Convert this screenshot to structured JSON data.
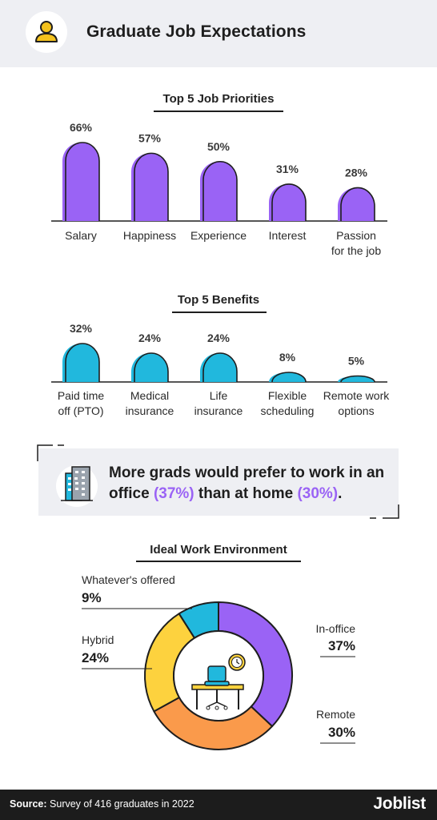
{
  "header": {
    "title": "Graduate Job Expectations",
    "icon": "user-icon",
    "icon_color": "#f4c21d"
  },
  "callout": {
    "text_before": "More grads would prefer to work in an office ",
    "highlight_1": "(37%)",
    "text_middle": " than at home ",
    "highlight_2": "(30%)",
    "text_after": ".",
    "icon": "office-building-icon",
    "highlight_color": "#9a63f5"
  },
  "footer": {
    "source_label": "Source:",
    "source_text": "Survey of 416 graduates in 2022",
    "brand": "Joblist"
  },
  "chart_data": [
    {
      "type": "bar",
      "title": "Top 5 Job Priorities",
      "categories": [
        "Salary",
        "Happiness",
        "Experience",
        "Interest",
        "Passion for the job"
      ],
      "values": [
        66,
        57,
        50,
        31,
        28
      ],
      "value_labels": [
        "66%",
        "57%",
        "50%",
        "31%",
        "28%"
      ],
      "unit": "%",
      "color": "#9a63f5",
      "ylim": [
        0,
        66
      ]
    },
    {
      "type": "bar",
      "title": "Top 5 Benefits",
      "categories": [
        "Paid time off (PTO)",
        "Medical insurance",
        "Life insurance",
        "Flexible scheduling",
        "Remote work options"
      ],
      "values": [
        32,
        24,
        24,
        8,
        5
      ],
      "value_labels": [
        "32%",
        "24%",
        "24%",
        "8%",
        "5%"
      ],
      "unit": "%",
      "color": "#21b8dd",
      "ylim": [
        0,
        32
      ]
    },
    {
      "type": "pie",
      "title": "Ideal Work Environment",
      "categories": [
        "In-office",
        "Remote",
        "Hybrid",
        "Whatever's offered"
      ],
      "values": [
        37,
        30,
        24,
        9
      ],
      "value_labels": [
        "37%",
        "30%",
        "24%",
        "9%"
      ],
      "colors": [
        "#9a63f5",
        "#fa9a4b",
        "#fdd23e",
        "#21b8dd"
      ],
      "style": "donut"
    }
  ]
}
